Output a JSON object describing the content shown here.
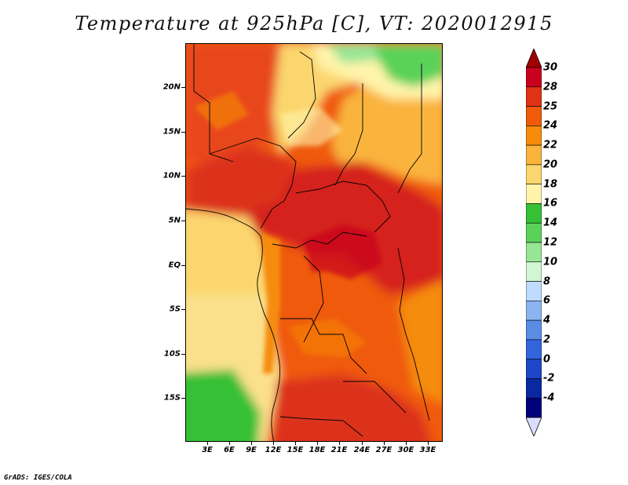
{
  "title": "Temperature at 925hPa [C], VT: 2020012915",
  "credit": "GrADS: IGES/COLA",
  "map": {
    "lat_labels": [
      "20N",
      "15N",
      "10N",
      "5N",
      "EQ",
      "5S",
      "10S",
      "15S"
    ],
    "lon_labels": [
      "3E",
      "6E",
      "9E",
      "12E",
      "15E",
      "18E",
      "21E",
      "24E",
      "27E",
      "30E",
      "33E"
    ]
  },
  "colorbar": {
    "labels": [
      "30",
      "28",
      "25",
      "24",
      "22",
      "20",
      "18",
      "16",
      "14",
      "12",
      "10",
      "8",
      "6",
      "4",
      "2",
      "0",
      "-2",
      "-4"
    ],
    "colors": [
      "#c8001e",
      "#e03214",
      "#f05a0a",
      "#f58c0a",
      "#fab43c",
      "#fbd66e",
      "#fff4aa",
      "#36c036",
      "#5ad25a",
      "#96e696",
      "#d2f5d2",
      "#bedcff",
      "#8cb4f0",
      "#5a8ce6",
      "#3264dc",
      "#1e46c8",
      "#0a28a0",
      "#000078"
    ],
    "over_color": "#a00000",
    "under_color": "#dcdcff"
  }
}
